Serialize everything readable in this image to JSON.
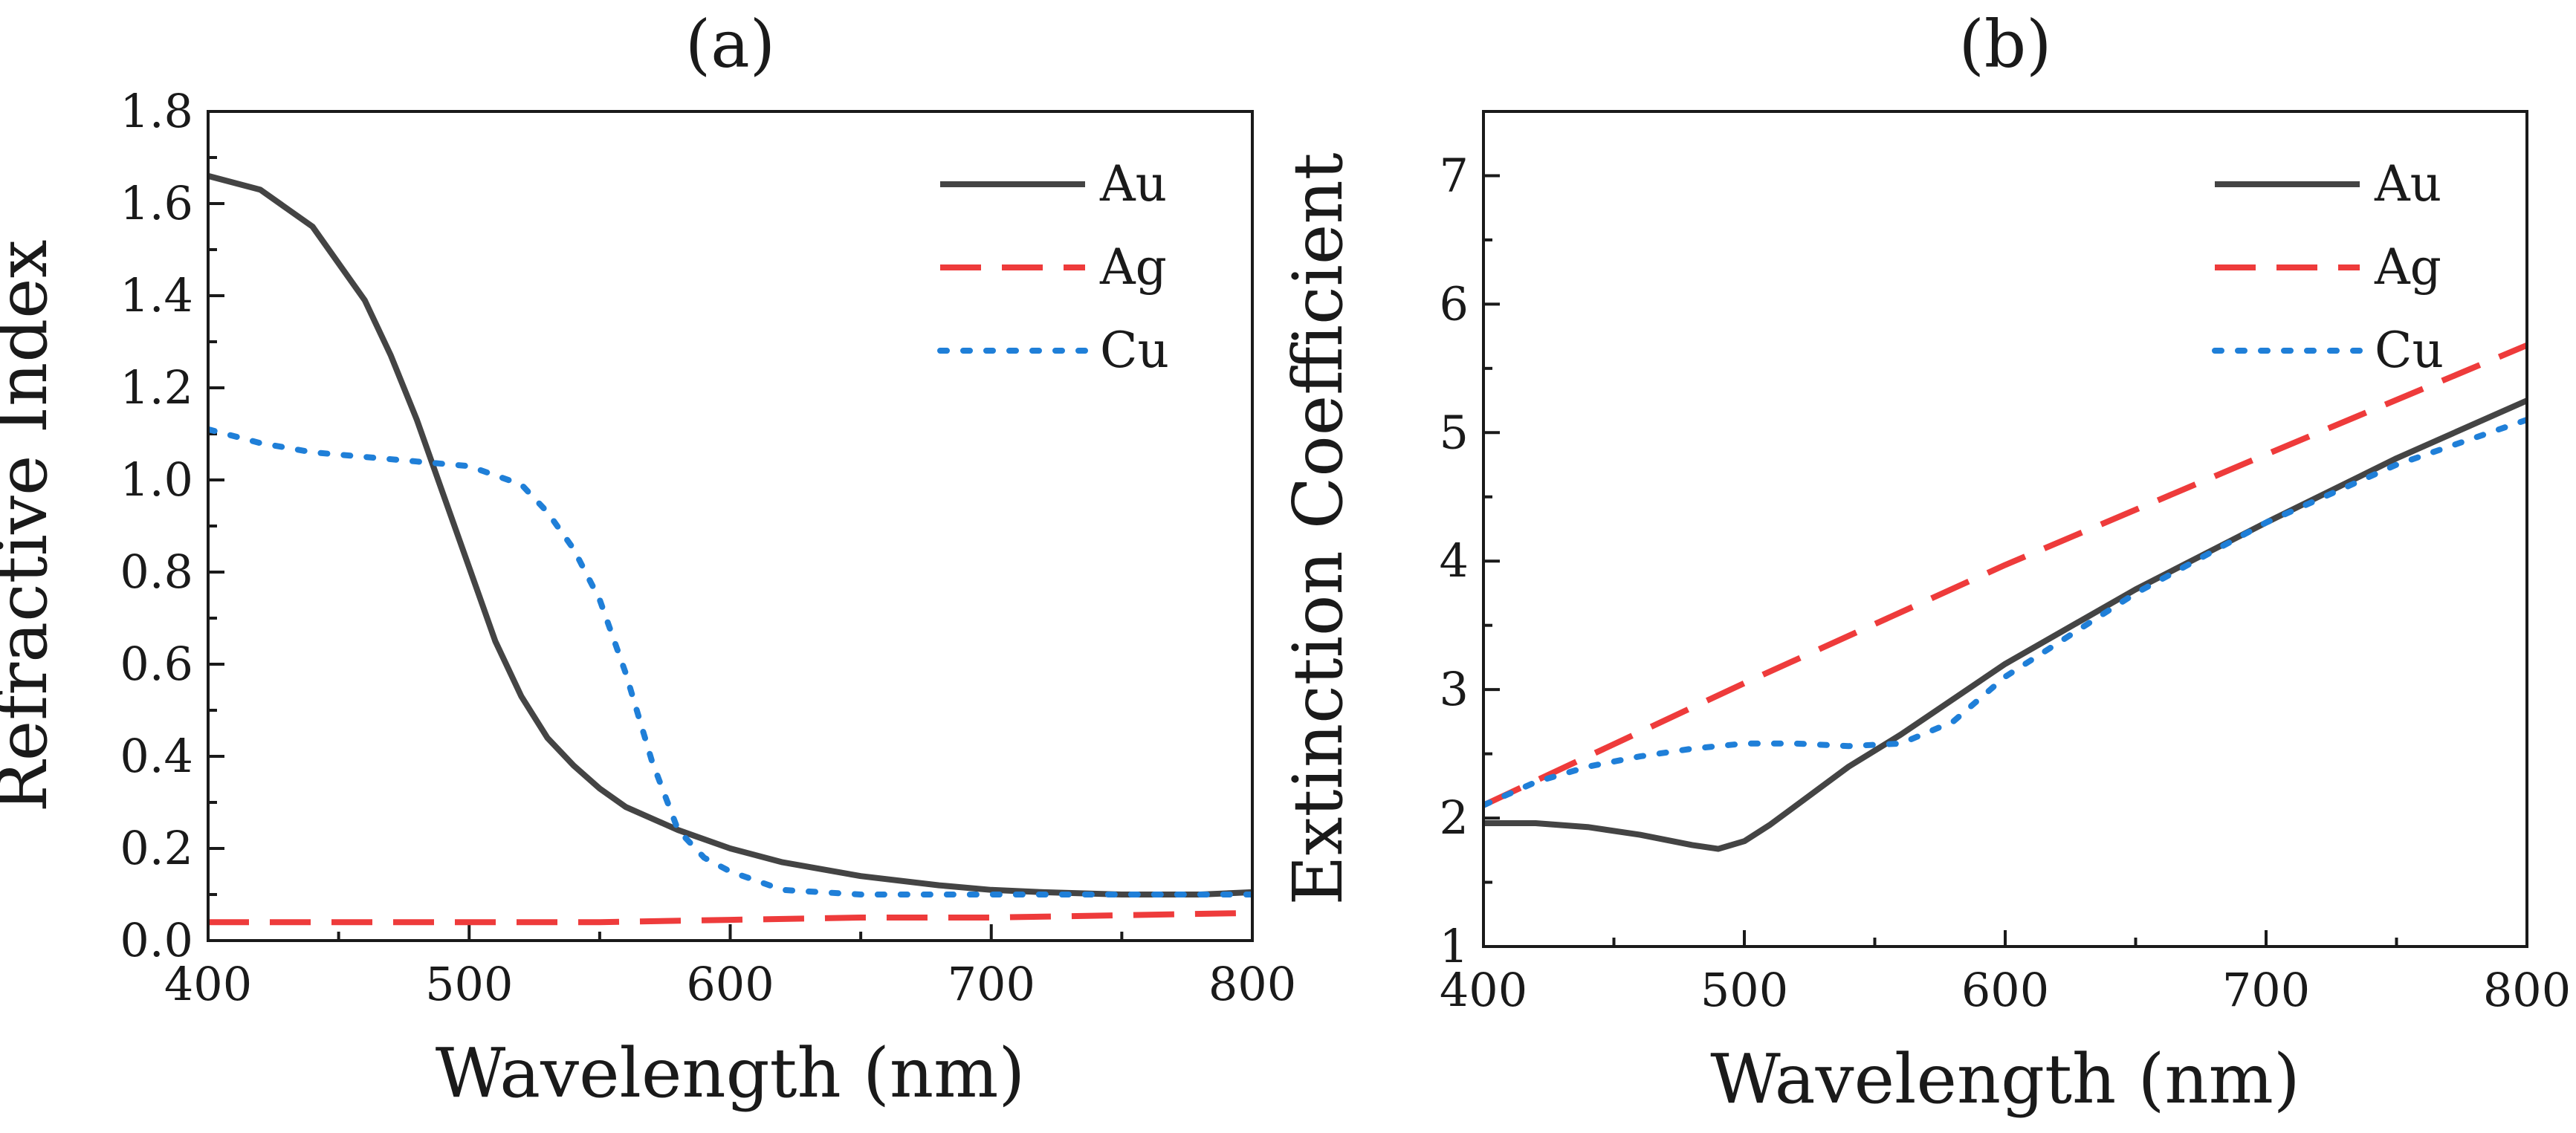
{
  "chart_data": [
    {
      "type": "line",
      "panel_label": "(a)",
      "title": "",
      "xlabel": "Wavelength (nm)",
      "ylabel": "Refractive Index",
      "xlim": [
        400,
        800
      ],
      "ylim": [
        0.0,
        1.8
      ],
      "xticks": [
        400,
        500,
        600,
        700,
        800
      ],
      "yticks": [
        0.0,
        0.2,
        0.4,
        0.6,
        0.8,
        1.0,
        1.2,
        1.4,
        1.6,
        1.8
      ],
      "ytick_decimals": 1,
      "grid": false,
      "legend_position": "top-right",
      "series": [
        {
          "name": "Au",
          "color": "#444444",
          "style": "solid",
          "x": [
            400,
            420,
            440,
            460,
            470,
            480,
            490,
            500,
            510,
            520,
            530,
            540,
            550,
            560,
            580,
            600,
            620,
            650,
            680,
            700,
            720,
            750,
            780,
            800
          ],
          "y": [
            1.66,
            1.63,
            1.55,
            1.39,
            1.27,
            1.13,
            0.97,
            0.81,
            0.65,
            0.53,
            0.44,
            0.38,
            0.33,
            0.29,
            0.24,
            0.2,
            0.17,
            0.14,
            0.12,
            0.11,
            0.105,
            0.1,
            0.1,
            0.105
          ]
        },
        {
          "name": "Ag",
          "color": "#ee3b3b",
          "style": "dashed",
          "x": [
            400,
            450,
            500,
            550,
            600,
            650,
            700,
            750,
            800
          ],
          "y": [
            0.04,
            0.04,
            0.04,
            0.04,
            0.045,
            0.05,
            0.05,
            0.055,
            0.06
          ]
        },
        {
          "name": "Cu",
          "color": "#1f7fd8",
          "style": "dotted",
          "x": [
            400,
            420,
            440,
            460,
            480,
            500,
            520,
            530,
            540,
            550,
            560,
            570,
            580,
            590,
            600,
            620,
            650,
            700,
            750,
            800
          ],
          "y": [
            1.11,
            1.08,
            1.06,
            1.05,
            1.04,
            1.03,
            0.99,
            0.93,
            0.85,
            0.74,
            0.58,
            0.39,
            0.24,
            0.18,
            0.15,
            0.11,
            0.1,
            0.1,
            0.1,
            0.1
          ]
        }
      ]
    },
    {
      "type": "line",
      "panel_label": "(b)",
      "title": "",
      "xlabel": "Wavelength (nm)",
      "ylabel": "Extinction Coefficient",
      "xlim": [
        400,
        800
      ],
      "ylim": [
        1,
        7.5
      ],
      "xticks": [
        400,
        500,
        600,
        700,
        800
      ],
      "yticks": [
        1,
        2,
        3,
        4,
        5,
        6,
        7
      ],
      "ytick_decimals": 0,
      "grid": false,
      "legend_position": "top-right",
      "series": [
        {
          "name": "Au",
          "color": "#444444",
          "style": "solid",
          "x": [
            400,
            420,
            440,
            460,
            480,
            490,
            500,
            510,
            520,
            540,
            560,
            600,
            650,
            700,
            750,
            800
          ],
          "y": [
            1.96,
            1.96,
            1.93,
            1.87,
            1.79,
            1.76,
            1.82,
            1.95,
            2.1,
            2.4,
            2.65,
            3.2,
            3.78,
            4.3,
            4.8,
            5.25
          ]
        },
        {
          "name": "Ag",
          "color": "#ee3b3b",
          "style": "dashed",
          "x": [
            400,
            500,
            600,
            700,
            800
          ],
          "y": [
            2.1,
            3.05,
            3.97,
            4.83,
            5.68
          ]
        },
        {
          "name": "Cu",
          "color": "#1f7fd8",
          "style": "dotted",
          "x": [
            400,
            420,
            440,
            460,
            480,
            500,
            520,
            540,
            560,
            580,
            600,
            650,
            700,
            750,
            800
          ],
          "y": [
            2.1,
            2.28,
            2.4,
            2.48,
            2.54,
            2.58,
            2.58,
            2.56,
            2.58,
            2.75,
            3.1,
            3.75,
            4.3,
            4.75,
            5.1
          ]
        }
      ]
    }
  ]
}
